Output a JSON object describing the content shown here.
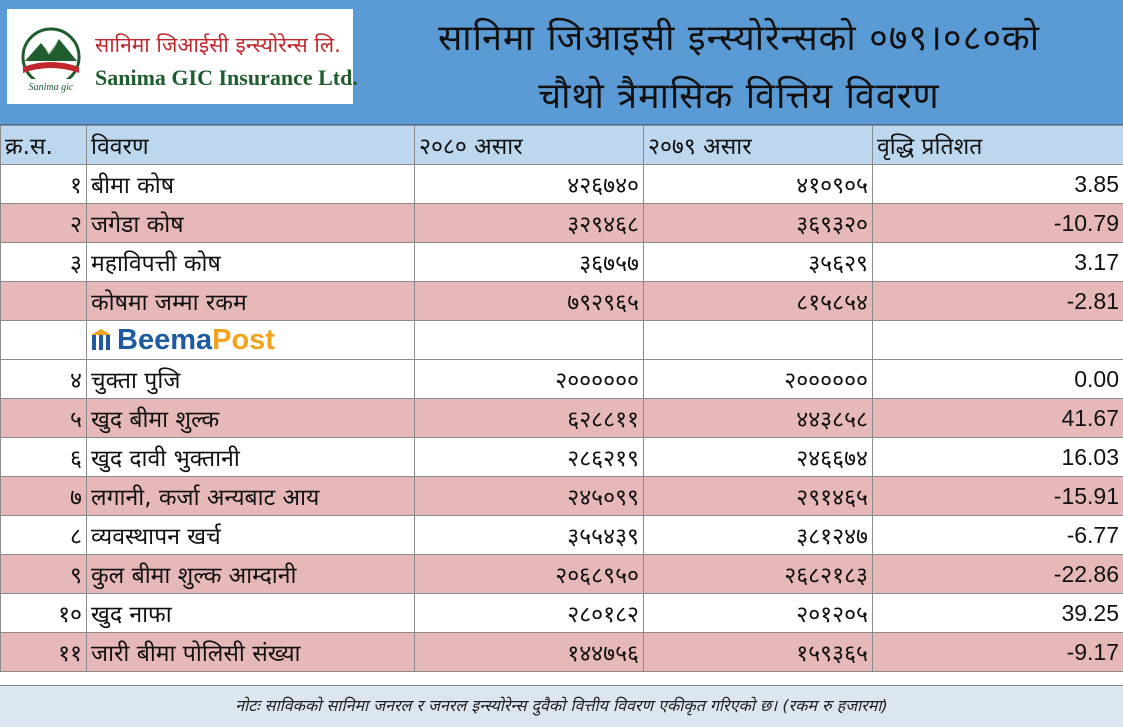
{
  "header": {
    "logo_np": "सानिमा जिआईसी इन्स्योरेन्स लि.",
    "logo_en": "Sanima GIC Insurance Ltd.",
    "logo_mark_text": "Sanima gic",
    "title_line1": "सानिमा जिआइसी इन्स्योरेन्सको ०७९।०८०को",
    "title_line2": "चौथो त्रैमासिक वित्तिय विवरण"
  },
  "table": {
    "headers": [
      "क्र.स.",
      "विवरण",
      "२०८० असार",
      "२०७९ असार",
      "वृद्धि प्रतिशत"
    ],
    "rows": [
      {
        "sn": "१",
        "desc": "बीमा कोष",
        "v1": "४२६७४०",
        "v2": "४१०९०५",
        "pct": "3.85",
        "tone": "white"
      },
      {
        "sn": "२",
        "desc": "जगेडा कोष",
        "v1": "३२९४६८",
        "v2": "३६९३२०",
        "pct": "-10.79",
        "tone": "pink"
      },
      {
        "sn": "३",
        "desc": "महाविपत्ती कोष",
        "v1": "३६७५७",
        "v2": "३५६२९",
        "pct": "3.17",
        "tone": "white"
      },
      {
        "sn": "",
        "desc": "कोषमा जम्मा रकम",
        "v1": "७९२९६५",
        "v2": "८१५८५४",
        "pct": "-2.81",
        "tone": "pink"
      },
      {
        "sn": "४",
        "desc": "चुक्ता पुजि",
        "v1": "२०००००० ",
        "v2": "२००००००",
        "pct": "0.00",
        "tone": "white"
      },
      {
        "sn": "५",
        "desc": "खुद बीमा शुल्क",
        "v1": "६२८८११",
        "v2": "४४३८५८",
        "pct": "41.67",
        "tone": "pink"
      },
      {
        "sn": "६",
        "desc": "खुद दावी भुक्तानी",
        "v1": "२८६२१९",
        "v2": "२४६६७४",
        "pct": "16.03",
        "tone": "white"
      },
      {
        "sn": "७",
        "desc": "लगानी, कर्जा अन्यबाट आय",
        "v1": "२४५०९९",
        "v2": "२९१४६५",
        "pct": "-15.91",
        "tone": "pink"
      },
      {
        "sn": "८",
        "desc": "व्यवस्थापन खर्च",
        "v1": "३५५४३९",
        "v2": "३८१२४७",
        "pct": "-6.77",
        "tone": "white"
      },
      {
        "sn": "९",
        "desc": "कुल बीमा शुल्क आम्दानी",
        "v1": "२०६८९५०",
        "v2": "२६८२१८३",
        "pct": "-22.86",
        "tone": "pink"
      },
      {
        "sn": "१०",
        "desc": "खुद नाफा",
        "v1": "२८०१८२",
        "v2": "२०१२०५",
        "pct": "39.25",
        "tone": "white"
      },
      {
        "sn": "११",
        "desc": "जारी बीमा पोलिसी संख्या",
        "v1": "१४४७५६",
        "v2": "१५९३६५",
        "pct": "-9.17",
        "tone": "pink"
      }
    ],
    "watermark": {
      "beema": "Beema",
      "post": "Post"
    }
  },
  "footer": {
    "note": "नोटः साविकको सानिमा जनरल र जनरल इन्स्योरेन्स दुवैको वित्तीय विवरण एकीकृत गरिएको छ। (रकम रु हजारमा)"
  },
  "colors": {
    "header_bg": "#5b9bd5",
    "column_header_bg": "#bdd7ee",
    "pink_row": "#e6b8b8",
    "logo_red": "#c0282d",
    "logo_green": "#1f5c2e",
    "beema_blue": "#1e5aa0",
    "beema_orange": "#f4a11c"
  }
}
